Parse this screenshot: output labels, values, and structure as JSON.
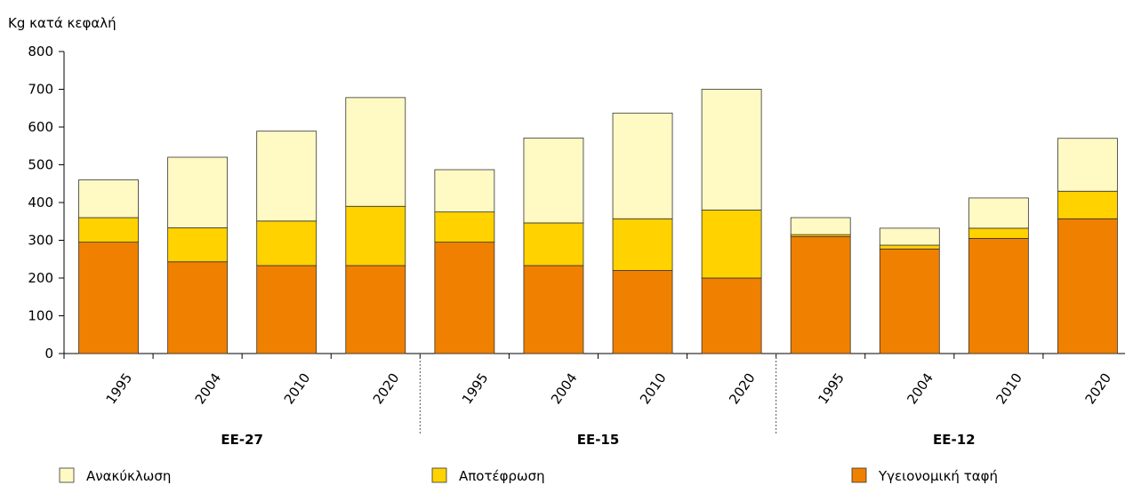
{
  "chart_data": {
    "type": "bar",
    "stacked": true,
    "ylabel": "Kg κατά  κεφαλή",
    "ylim": [
      0,
      800
    ],
    "yticks": [
      0,
      100,
      200,
      300,
      400,
      500,
      600,
      700,
      800
    ],
    "groups": [
      {
        "label": "ΕΕ-27",
        "years": [
          "1995",
          "2004",
          "2010",
          "2020"
        ]
      },
      {
        "label": "ΕΕ-15",
        "years": [
          "1995",
          "2004",
          "2010",
          "2020"
        ]
      },
      {
        "label": "ΕΕ-12",
        "years": [
          "1995",
          "2004",
          "2010",
          "2020"
        ]
      }
    ],
    "series": [
      {
        "name": "Υγειονομική ταφή",
        "color": "#F08000",
        "values": [
          295,
          243,
          233,
          233,
          295,
          233,
          220,
          200,
          310,
          277,
          305,
          357
        ]
      },
      {
        "name": "Αποτέφρωση",
        "color": "#FFD200",
        "values": [
          65,
          90,
          118,
          157,
          80,
          113,
          137,
          180,
          5,
          10,
          27,
          73
        ]
      },
      {
        "name": "Ανακύκλωση",
        "color": "#FFF9C4",
        "values": [
          100,
          187,
          238,
          288,
          112,
          225,
          280,
          320,
          45,
          45,
          80,
          140
        ]
      }
    ],
    "legend_order": [
      "Ανακύκλωση",
      "Αποτέφρωση",
      "Υγειονομική ταφή"
    ],
    "legend_position": "bottom",
    "grid": false
  }
}
